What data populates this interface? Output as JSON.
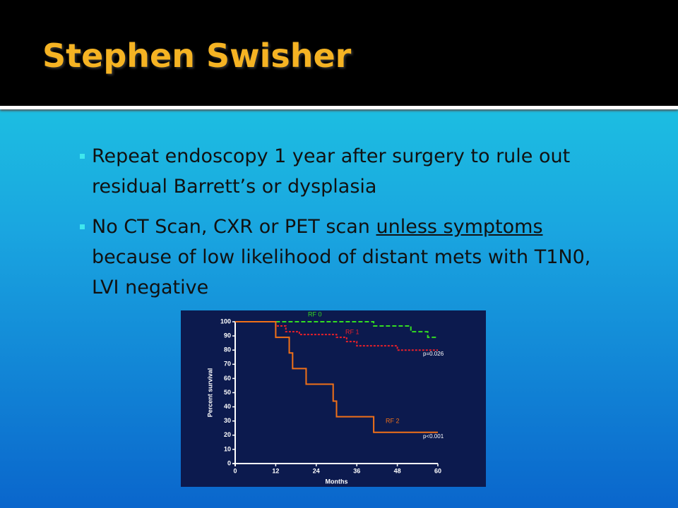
{
  "header": {
    "title": "Stephen Swisher"
  },
  "bullets": [
    {
      "text": "Repeat endoscopy 1 year after surgery to rule out residual Barrett’s or dysplasia"
    },
    {
      "before": "No CT Scan, CXR or PET scan ",
      "underlined": "unless symptoms",
      "after": " because of low likelihood of distant mets with T1N0, LVI negative"
    }
  ],
  "chart_data": {
    "type": "step",
    "x_label": "Months",
    "y_label": "Percent survival",
    "xlim": [
      0,
      60
    ],
    "xticks": [
      0,
      12,
      24,
      36,
      48,
      60
    ],
    "ylim": [
      0,
      100
    ],
    "yticks": [
      0,
      10,
      20,
      30,
      40,
      50,
      60,
      70,
      80,
      90,
      100
    ],
    "series": [
      {
        "name": "RF 0",
        "color": "#33dd22",
        "x": [
          12,
          41,
          52,
          57,
          60
        ],
        "values": [
          100,
          97,
          93,
          89,
          89
        ]
      },
      {
        "name": "RF 1",
        "color": "#e8202a",
        "x": [
          0,
          12,
          15,
          19,
          30,
          33,
          36,
          48,
          60
        ],
        "values": [
          100,
          97,
          93,
          91,
          89,
          86,
          83,
          80,
          80
        ]
      },
      {
        "name": "RF 2",
        "color": "#f07018",
        "x": [
          0,
          12,
          16,
          17,
          21,
          29,
          30,
          41,
          60
        ],
        "values": [
          100,
          89,
          78,
          67,
          56,
          44,
          33,
          22,
          22
        ]
      }
    ],
    "annotations": [
      "p=0.026",
      "p<0.001"
    ]
  }
}
